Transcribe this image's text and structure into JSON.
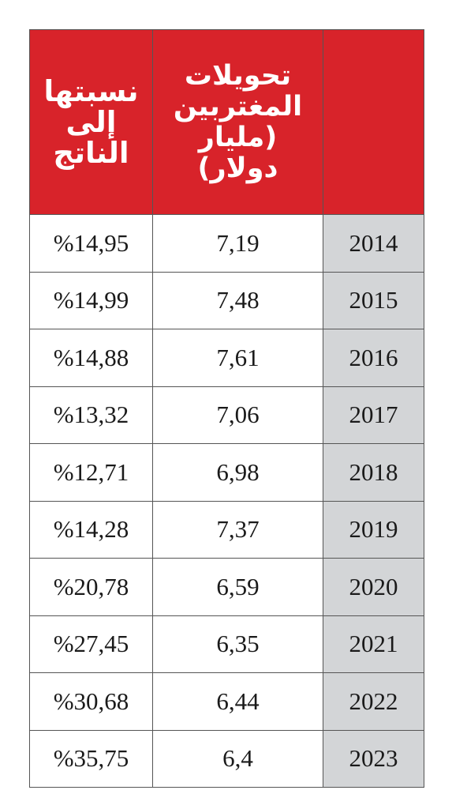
{
  "header": {
    "ratio": [
      "نسبتها",
      "إلى",
      "الناتج"
    ],
    "remittances": [
      "تحويلات",
      "المغتربين",
      "(مليار",
      "دولار)"
    ],
    "year": ""
  },
  "rows": [
    {
      "ratio": "%14,95",
      "remittances": "7,19",
      "year": "2014"
    },
    {
      "ratio": "%14,99",
      "remittances": "7,48",
      "year": "2015"
    },
    {
      "ratio": "%14,88",
      "remittances": "7,61",
      "year": "2016"
    },
    {
      "ratio": "%13,32",
      "remittances": "7,06",
      "year": "2017"
    },
    {
      "ratio": "%12,71",
      "remittances": "6,98",
      "year": "2018"
    },
    {
      "ratio": "%14,28",
      "remittances": "7,37",
      "year": "2019"
    },
    {
      "ratio": "%20,78",
      "remittances": "6,59",
      "year": "2020"
    },
    {
      "ratio": "%27,45",
      "remittances": "6,35",
      "year": "2021"
    },
    {
      "ratio": "%30,68",
      "remittances": "6,44",
      "year": "2022"
    },
    {
      "ratio": "%35,75",
      "remittances": "6,4",
      "year": "2023"
    }
  ],
  "colors": {
    "header_bg": "#d8232a",
    "header_text": "#ffffff",
    "year_cell_bg": "#d3d5d7",
    "border": "#555555"
  }
}
